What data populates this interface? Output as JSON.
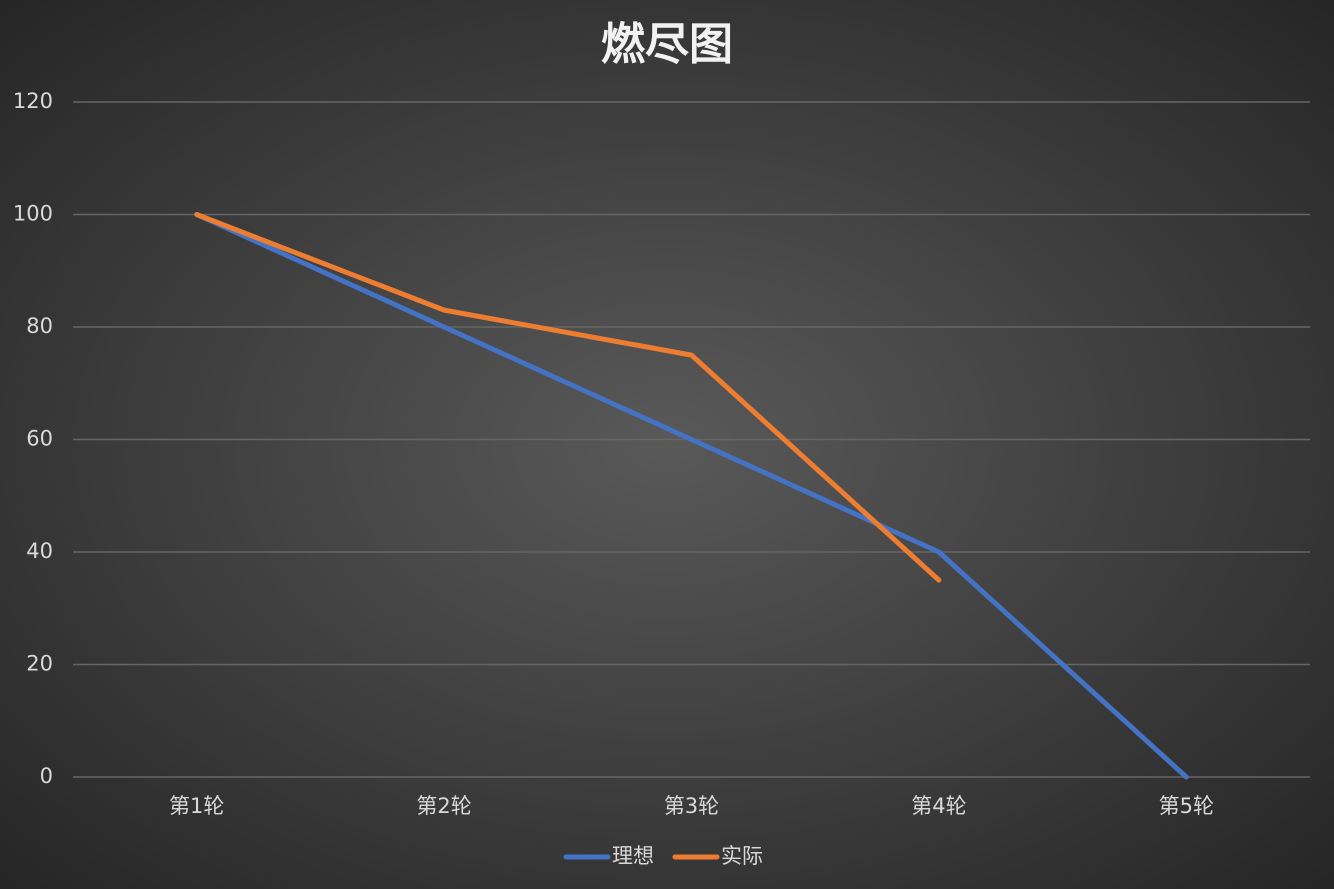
{
  "chart_data": {
    "type": "line",
    "title": "燃尽图",
    "categories": [
      "第1轮",
      "第2轮",
      "第3轮",
      "第4轮",
      "第5轮"
    ],
    "series": [
      {
        "name": "理想",
        "color": "#4472c4",
        "values": [
          100,
          80,
          60,
          40,
          0
        ]
      },
      {
        "name": "实际",
        "color": "#ed7d31",
        "values": [
          100,
          83,
          75,
          35,
          null
        ]
      }
    ],
    "ylim": [
      0,
      120
    ],
    "yticks": [
      0,
      20,
      40,
      60,
      80,
      100,
      120
    ],
    "grid": true,
    "legend": "bottom"
  }
}
